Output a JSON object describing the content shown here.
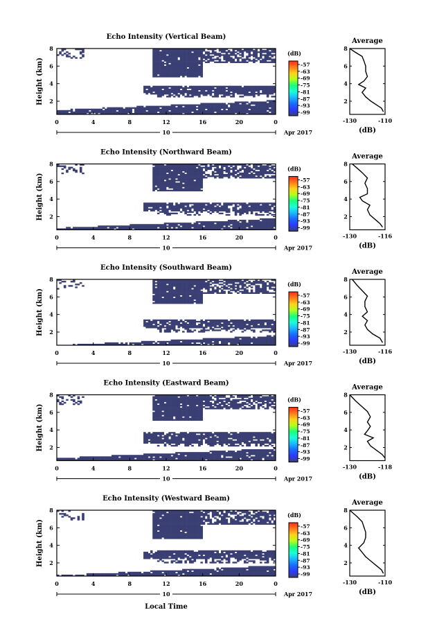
{
  "xlabel": "Local Time",
  "chart_data": [
    {
      "type": "heatmap",
      "title": "Echo Intensity (Vertical Beam)",
      "ylabel": "Height (km)",
      "xlim": [
        0,
        24
      ],
      "ylim": [
        0.5,
        8
      ],
      "x_ticks": [
        "0",
        "4",
        "8",
        "12",
        "16",
        "20",
        "0"
      ],
      "y_ticks": [
        "2",
        "4",
        "6",
        "8"
      ],
      "date_label": "10",
      "date_suffix": "Apr 2017",
      "colorbar": {
        "unit": "(dB)",
        "ticks": [
          "-57",
          "-63",
          "-69",
          "-75",
          "-81",
          "-87",
          "-93",
          "-99"
        ]
      },
      "average": {
        "title": "Average",
        "xlabel": "(dB)",
        "xlim": [
          -130,
          -110
        ],
        "x_ticks": [
          "-130",
          "-110"
        ],
        "y_ticks": [
          "2",
          "4",
          "6",
          "8"
        ],
        "profile": [
          [
            -111,
            0.8
          ],
          [
            -112,
            1.2
          ],
          [
            -115,
            1.6
          ],
          [
            -118,
            2.0
          ],
          [
            -121,
            2.5
          ],
          [
            -123,
            3.0
          ],
          [
            -121,
            3.5
          ],
          [
            -125,
            3.9
          ],
          [
            -122,
            4.3
          ],
          [
            -120,
            4.8
          ],
          [
            -121,
            5.4
          ],
          [
            -121,
            6.0
          ],
          [
            -122,
            6.6
          ],
          [
            -123,
            7.1
          ],
          [
            -127,
            7.6
          ],
          [
            -130,
            8.0
          ]
        ]
      },
      "layers": {
        "low_top": 1.9,
        "mid": [
          2.8,
          3.7
        ],
        "upper_bottom": 4.7
      }
    },
    {
      "type": "heatmap",
      "title": "Echo Intensity (Northward Beam)",
      "ylabel": "Height (km)",
      "xlim": [
        0,
        24
      ],
      "ylim": [
        0.5,
        8
      ],
      "x_ticks": [
        "0",
        "4",
        "8",
        "12",
        "16",
        "20",
        "0"
      ],
      "y_ticks": [
        "2",
        "4",
        "6",
        "8"
      ],
      "date_label": "10",
      "date_suffix": "Apr 2017",
      "colorbar": {
        "unit": "(dB)",
        "ticks": [
          "-57",
          "-63",
          "-69",
          "-75",
          "-81",
          "-87",
          "-93",
          "-99"
        ]
      },
      "average": {
        "title": "Average",
        "xlabel": "(dB)",
        "xlim": [
          -130,
          -116
        ],
        "x_ticks": [
          "-130",
          "-116"
        ],
        "y_ticks": [
          "2",
          "4",
          "6",
          "8"
        ],
        "profile": [
          [
            -117,
            0.8
          ],
          [
            -118,
            1.2
          ],
          [
            -120,
            1.7
          ],
          [
            -122,
            2.2
          ],
          [
            -123,
            2.8
          ],
          [
            -122,
            3.3
          ],
          [
            -125,
            3.8
          ],
          [
            -126,
            4.2
          ],
          [
            -123,
            4.6
          ],
          [
            -123,
            5.2
          ],
          [
            -124,
            5.8
          ],
          [
            -123,
            6.4
          ],
          [
            -125,
            7.0
          ],
          [
            -127,
            7.5
          ],
          [
            -129,
            8.0
          ]
        ]
      },
      "layers": {
        "low_top": 1.6,
        "mid": [
          2.6,
          3.6
        ],
        "upper_bottom": 4.9
      }
    },
    {
      "type": "heatmap",
      "title": "Echo Intensity (Southward Beam)",
      "ylabel": "Height (km)",
      "xlim": [
        0,
        24
      ],
      "ylim": [
        0.5,
        8
      ],
      "x_ticks": [
        "0",
        "4",
        "8",
        "12",
        "16",
        "20",
        "0"
      ],
      "y_ticks": [
        "2",
        "4",
        "6",
        "8"
      ],
      "date_label": "10",
      "date_suffix": "Apr 2017",
      "colorbar": {
        "unit": "(dB)",
        "ticks": [
          "-57",
          "-63",
          "-69",
          "-75",
          "-81",
          "-87",
          "-93",
          "-99"
        ]
      },
      "average": {
        "title": "Average",
        "xlabel": "(dB)",
        "xlim": [
          -130,
          -116
        ],
        "x_ticks": [
          "-130",
          "-116"
        ],
        "y_ticks": [
          "2",
          "4",
          "6",
          "8"
        ],
        "profile": [
          [
            -117,
            0.8
          ],
          [
            -118,
            1.3
          ],
          [
            -121,
            1.8
          ],
          [
            -123,
            2.3
          ],
          [
            -124,
            2.8
          ],
          [
            -123,
            3.3
          ],
          [
            -125,
            3.8
          ],
          [
            -123,
            4.3
          ],
          [
            -124,
            4.9
          ],
          [
            -124,
            5.5
          ],
          [
            -123,
            6.1
          ],
          [
            -125,
            6.7
          ],
          [
            -127,
            7.3
          ],
          [
            -129,
            8.0
          ]
        ]
      },
      "layers": {
        "low_top": 1.4,
        "mid": [
          2.4,
          3.5
        ],
        "upper_bottom": 5.2
      }
    },
    {
      "type": "heatmap",
      "title": "Echo Intensity (Eastward Beam)",
      "ylabel": "Height (km)",
      "xlim": [
        0,
        24
      ],
      "ylim": [
        0.5,
        8
      ],
      "x_ticks": [
        "0",
        "4",
        "8",
        "12",
        "16",
        "20",
        "0"
      ],
      "y_ticks": [
        "2",
        "4",
        "6",
        "8"
      ],
      "date_label": "10",
      "date_suffix": "Apr 2017",
      "colorbar": {
        "unit": "(dB)",
        "ticks": [
          "-57",
          "-63",
          "-69",
          "-75",
          "-81",
          "-87",
          "-93",
          "-99"
        ]
      },
      "average": {
        "title": "Average",
        "xlabel": "(dB)",
        "xlim": [
          -130,
          -118
        ],
        "x_ticks": [
          "-130",
          "-118"
        ],
        "y_ticks": [
          "2",
          "4",
          "6",
          "8"
        ],
        "profile": [
          [
            -118,
            0.8
          ],
          [
            -119,
            1.2
          ],
          [
            -121,
            1.7
          ],
          [
            -123,
            2.2
          ],
          [
            -124,
            2.7
          ],
          [
            -122,
            3.1
          ],
          [
            -125,
            3.5
          ],
          [
            -124,
            3.9
          ],
          [
            -123,
            4.4
          ],
          [
            -124,
            4.9
          ],
          [
            -123,
            5.5
          ],
          [
            -124,
            6.1
          ],
          [
            -126,
            6.7
          ],
          [
            -128,
            7.3
          ],
          [
            -130,
            8.0
          ]
        ]
      },
      "layers": {
        "low_top": 1.7,
        "mid": [
          2.5,
          3.8
        ],
        "upper_bottom": 5.0
      }
    },
    {
      "type": "heatmap",
      "title": "Echo Intensity (Westward Beam)",
      "ylabel": "Height (km)",
      "xlim": [
        0,
        24
      ],
      "ylim": [
        0.5,
        8
      ],
      "x_ticks": [
        "0",
        "4",
        "8",
        "12",
        "16",
        "20",
        "0"
      ],
      "y_ticks": [
        "2",
        "4",
        "6",
        "8"
      ],
      "date_label": "10",
      "date_suffix": "Apr 2017",
      "colorbar": {
        "unit": "(dB)",
        "ticks": [
          "-57",
          "-63",
          "-69",
          "-75",
          "-81",
          "-87",
          "-93",
          "-99"
        ]
      },
      "average": {
        "title": "Average",
        "xlabel": "(dB)",
        "xlim": [
          -130,
          -110
        ],
        "x_ticks": [
          "-130",
          "-110"
        ],
        "y_ticks": [
          "2",
          "4",
          "6",
          "8"
        ],
        "profile": [
          [
            -111,
            0.8
          ],
          [
            -112,
            1.2
          ],
          [
            -115,
            1.7
          ],
          [
            -118,
            2.2
          ],
          [
            -121,
            2.7
          ],
          [
            -123,
            3.2
          ],
          [
            -125,
            3.7
          ],
          [
            -122,
            4.3
          ],
          [
            -121,
            4.9
          ],
          [
            -121,
            5.5
          ],
          [
            -122,
            6.1
          ],
          [
            -123,
            6.7
          ],
          [
            -126,
            7.3
          ],
          [
            -130,
            8.0
          ]
        ]
      },
      "layers": {
        "low_top": 1.5,
        "mid": [
          2.4,
          3.4
        ],
        "upper_bottom": 4.8
      }
    }
  ],
  "colors": {
    "echo_fill": "#3a3f73",
    "colorbar_stops": [
      "#ff2a1a",
      "#ff7a1a",
      "#ffd21a",
      "#b6ff1a",
      "#1aff7a",
      "#1affd8",
      "#1ab8ff",
      "#1a6bff",
      "#2a3aff",
      "#3a3f73"
    ]
  }
}
